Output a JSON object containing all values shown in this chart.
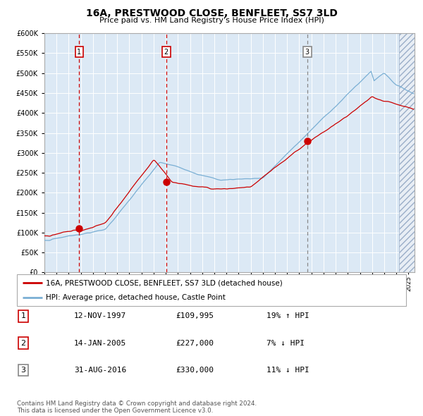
{
  "title": "16A, PRESTWOOD CLOSE, BENFLEET, SS7 3LD",
  "subtitle": "Price paid vs. HM Land Registry's House Price Index (HPI)",
  "background_color": "#dce9f5",
  "plot_bg_color": "#dce9f5",
  "ylim": [
    0,
    600000
  ],
  "xlim_start": 1995.0,
  "xlim_end": 2025.5,
  "sale_dates": [
    1997.87,
    2005.04,
    2016.66
  ],
  "sale_prices": [
    109995,
    227000,
    330000
  ],
  "sale_labels": [
    "1",
    "2",
    "3"
  ],
  "sale_annotations": [
    "12-NOV-1997",
    "14-JAN-2005",
    "31-AUG-2016"
  ],
  "sale_amounts": [
    "£109,995",
    "£227,000",
    "£330,000"
  ],
  "sale_hpi": [
    "19% ↑ HPI",
    "7% ↓ HPI",
    "11% ↓ HPI"
  ],
  "red_line_color": "#cc0000",
  "blue_line_color": "#7aafd4",
  "dot_color": "#cc0000",
  "vline_colors_solid": [
    "#cc0000",
    "#cc0000"
  ],
  "vline_color_dash": "#888888",
  "legend_label_red": "16A, PRESTWOOD CLOSE, BENFLEET, SS7 3LD (detached house)",
  "legend_label_blue": "HPI: Average price, detached house, Castle Point",
  "footnote": "Contains HM Land Registry data © Crown copyright and database right 2024.\nThis data is licensed under the Open Government Licence v3.0.",
  "hatch_color": "#b0c0d8"
}
